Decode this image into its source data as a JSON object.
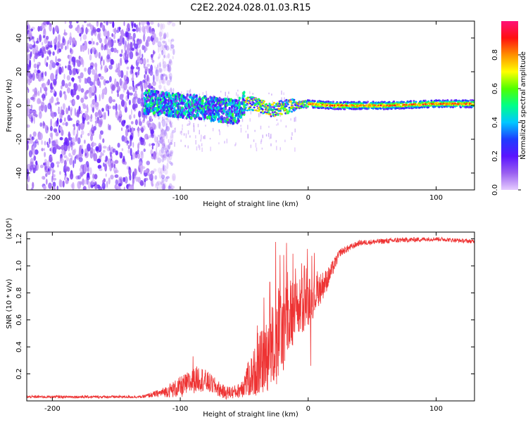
{
  "title": "C2E2.2024.028.01.03.R15",
  "chart_data": [
    {
      "type": "heatmap",
      "xlabel": "Height of straight line (km)",
      "ylabel": "Frequency (Hz)",
      "xlim": [
        -220,
        130
      ],
      "ylim": [
        -50,
        50
      ],
      "xticks": [
        -200,
        -100,
        0,
        100
      ],
      "yticks": [
        -40,
        -20,
        0,
        20,
        40
      ],
      "colorbar": {
        "label": "Normalized spectral amplitude",
        "range": [
          0,
          1
        ],
        "ticks": [
          "0.0",
          "0.2",
          "0.4",
          "0.6",
          "0.8"
        ],
        "tick_values": [
          0.0,
          0.2,
          0.4,
          0.6,
          0.8
        ],
        "colormap": [
          "#e6ccff",
          "#9a60f0",
          "#5a14ff",
          "#1e3cff",
          "#00c8ff",
          "#00ff88",
          "#50ff00",
          "#ffff00",
          "#ff9000",
          "#ff1010",
          "#ff1078"
        ]
      },
      "ridge": {
        "center_hz": [
          {
            "x": -125,
            "y": 2
          },
          {
            "x": -100,
            "y": 0
          },
          {
            "x": -75,
            "y": -2
          },
          {
            "x": -55,
            "y": -4
          },
          {
            "x": -50,
            "y": 1
          },
          {
            "x": -40,
            "y": 1
          },
          {
            "x": -30,
            "y": -3
          },
          {
            "x": -20,
            "y": -1
          },
          {
            "x": 0,
            "y": 1
          },
          {
            "x": 20,
            "y": 0
          },
          {
            "x": 60,
            "y": 0
          },
          {
            "x": 100,
            "y": 1
          },
          {
            "x": 130,
            "y": 1
          }
        ]
      },
      "noise_region_x": [
        -220,
        -120
      ]
    },
    {
      "type": "line",
      "xlabel": "Height of straight line (km)",
      "ylabel": "SNR (10 * v/v)",
      "y_multiplier": "(x10⁴)",
      "xlim": [
        -220,
        130
      ],
      "ylim": [
        0,
        1.25
      ],
      "xticks": [
        -200,
        -100,
        0,
        100
      ],
      "yticks": [
        0.2,
        0.4,
        0.6,
        0.8,
        1.0,
        1.2
      ],
      "ytick_labels": [
        "0.2",
        "0.4",
        "0.6",
        "0.8",
        "1.0",
        "1.2"
      ],
      "color": "#ee3333",
      "series": [
        {
          "trend": [
            {
              "x": -220,
              "y": 0.03,
              "noise": 0.01
            },
            {
              "x": -130,
              "y": 0.03,
              "noise": 0.01
            },
            {
              "x": -115,
              "y": 0.06,
              "noise": 0.03
            },
            {
              "x": -100,
              "y": 0.1,
              "noise": 0.08
            },
            {
              "x": -85,
              "y": 0.17,
              "noise": 0.1
            },
            {
              "x": -75,
              "y": 0.12,
              "noise": 0.07
            },
            {
              "x": -65,
              "y": 0.06,
              "noise": 0.05
            },
            {
              "x": -55,
              "y": 0.07,
              "noise": 0.05
            },
            {
              "x": -45,
              "y": 0.18,
              "noise": 0.15
            },
            {
              "x": -35,
              "y": 0.3,
              "noise": 0.25
            },
            {
              "x": -25,
              "y": 0.45,
              "noise": 0.35
            },
            {
              "x": -15,
              "y": 0.6,
              "noise": 0.3
            },
            {
              "x": -5,
              "y": 0.7,
              "noise": 0.22
            },
            {
              "x": 5,
              "y": 0.78,
              "noise": 0.15
            },
            {
              "x": 15,
              "y": 0.9,
              "noise": 0.08
            },
            {
              "x": 25,
              "y": 1.1,
              "noise": 0.03
            },
            {
              "x": 40,
              "y": 1.17,
              "noise": 0.02
            },
            {
              "x": 70,
              "y": 1.19,
              "noise": 0.02
            },
            {
              "x": 100,
              "y": 1.2,
              "noise": 0.015
            },
            {
              "x": 130,
              "y": 1.18,
              "noise": 0.015
            }
          ],
          "spikes": [
            {
              "x": -90,
              "y": 0.33
            },
            {
              "x": -30,
              "y": 0.88
            },
            {
              "x": -22,
              "y": 1.08
            },
            {
              "x": -17,
              "y": 1.17
            },
            {
              "x": -10,
              "y": 0.98
            },
            {
              "x": -3,
              "y": 1.0
            },
            {
              "x": 2,
              "y": 0.26
            }
          ]
        }
      ]
    }
  ]
}
